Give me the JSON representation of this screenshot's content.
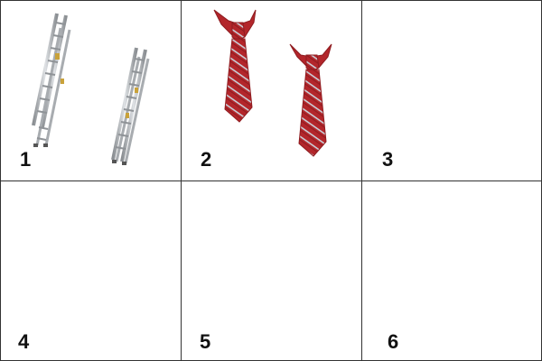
{
  "cells": [
    {
      "number": "1",
      "picture": "ladders-pair"
    },
    {
      "number": "2",
      "picture": "neckties-pair"
    },
    {
      "number": "3",
      "picture": ""
    },
    {
      "number": "4",
      "picture": ""
    },
    {
      "number": "5",
      "picture": ""
    },
    {
      "number": "6",
      "picture": ""
    }
  ],
  "colors": {
    "grid_line": "#333333",
    "ladder_metal": "#b8bcc0",
    "ladder_dark": "#7d8185",
    "ladder_brass": "#c9a23a",
    "tie_red": "#b3262b",
    "tie_stripe": "#c9ced6"
  }
}
